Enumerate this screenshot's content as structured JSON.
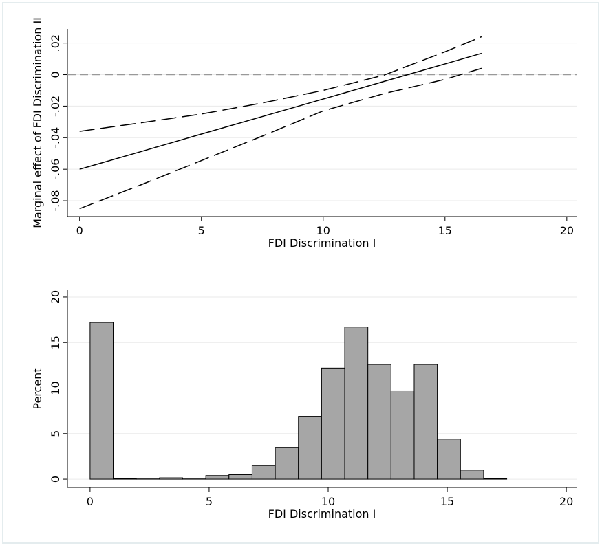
{
  "chart_data": [
    {
      "type": "line",
      "y_label": "Marginal effect of FDI Discrimination II",
      "x_label": "FDI Discrimination I",
      "x": [
        0,
        2.5,
        5,
        7.5,
        10,
        12.5,
        15,
        16.5
      ],
      "series": [
        {
          "color": "#000000",
          "dash": false,
          "values": [
            -0.06,
            -0.0489,
            -0.0377,
            -0.0266,
            -0.0155,
            -0.0043,
            0.0068,
            0.0135
          ]
        },
        {
          "color": "#000000",
          "dash": true,
          "values": [
            -0.036,
            -0.0306,
            -0.025,
            -0.018,
            -0.01,
            -0.0003,
            0.0145,
            0.024
          ]
        },
        {
          "color": "#000000",
          "dash": true,
          "values": [
            -0.085,
            -0.07,
            -0.0545,
            -0.039,
            -0.023,
            -0.012,
            -0.003,
            0.004
          ]
        }
      ],
      "refline": 0,
      "refline_color": "#999999",
      "xlim": [
        -0.5,
        20.4
      ],
      "xticks": [
        0,
        5,
        10,
        15,
        20
      ],
      "ylim": [
        -0.09,
        0.029
      ],
      "yticks": [
        {
          "value": -0.08,
          "label": "-.08"
        },
        {
          "value": -0.06,
          "label": "-.06"
        },
        {
          "value": -0.04,
          "label": "-.04"
        },
        {
          "value": -0.02,
          "label": "-.02"
        },
        0,
        {
          "value": 0.02,
          "label": ".02"
        }
      ],
      "grid": true
    },
    {
      "type": "histogram",
      "y_label": "Percent",
      "x_label": "FDI Discrimination I",
      "bins": [
        0,
        0.972,
        1.944,
        2.917,
        3.889,
        4.861,
        5.833,
        6.806,
        7.778,
        8.75,
        9.722,
        10.694,
        11.667,
        12.639,
        13.611,
        14.583,
        15.556,
        16.528,
        17.5
      ],
      "values": [
        17.2,
        0.05,
        0.1,
        0.15,
        0.1,
        0.4,
        0.5,
        1.5,
        3.5,
        6.9,
        12.2,
        16.7,
        12.6,
        9.7,
        12.6,
        4.4,
        1.0,
        0.05
      ],
      "color": "#a6a6a6",
      "xlim": [
        -0.95,
        20.43
      ],
      "xticks": [
        0,
        5,
        10,
        15,
        20
      ],
      "ylim": [
        -0.9,
        20.75
      ],
      "yticks": [
        0,
        5,
        10,
        15,
        20
      ],
      "grid": true
    }
  ]
}
